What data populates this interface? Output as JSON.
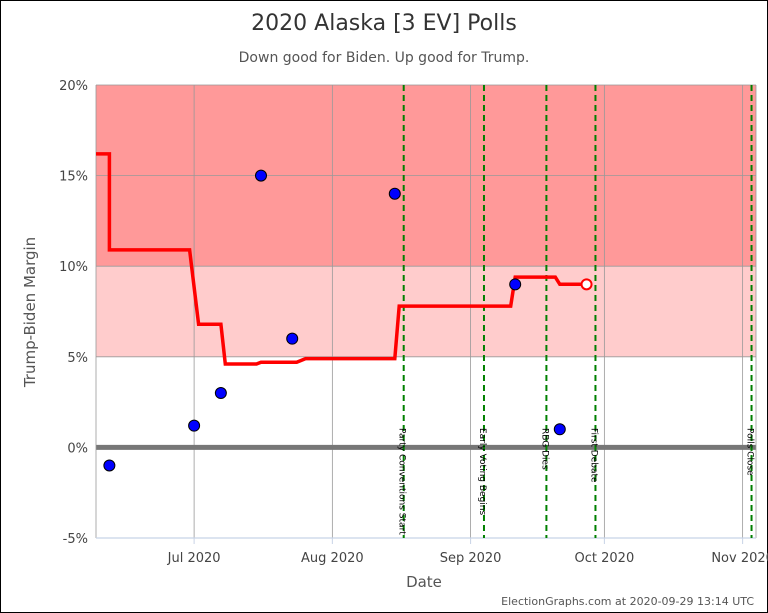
{
  "chart_data": {
    "type": "line",
    "title": "2020 Alaska [3 EV] Polls",
    "subtitle": "Down good for Biden. Up good for Trump.",
    "xlabel": "Date",
    "ylabel": "Trump-Biden Margin",
    "xlim": [
      "2020-06-09",
      "2020-11-04"
    ],
    "ylim": [
      -5,
      20
    ],
    "yticks": [
      -5,
      0,
      5,
      10,
      15,
      20
    ],
    "ytick_labels": [
      "-5%",
      "0%",
      "5%",
      "10%",
      "15%",
      "20%"
    ],
    "xticks": [
      {
        "date": "2020-07-01",
        "label": "Jul 2020"
      },
      {
        "date": "2020-08-01",
        "label": "Aug 2020"
      },
      {
        "date": "2020-09-01",
        "label": "Sep 2020"
      },
      {
        "date": "2020-10-01",
        "label": "Oct 2020"
      },
      {
        "date": "2020-11-01",
        "label": "Nov 2020"
      }
    ],
    "bands": [
      {
        "from": 10,
        "to": 20,
        "color": "#ff9999"
      },
      {
        "from": 5,
        "to": 10,
        "color": "#ffcccc"
      }
    ],
    "zero_line_color": "#777777",
    "grid": true,
    "series": [
      {
        "type": "step",
        "color": "#ff0000",
        "points": [
          {
            "x": "2020-06-09",
            "y": 16.2
          },
          {
            "x": "2020-06-12",
            "y": 16.2
          },
          {
            "x": "2020-06-12",
            "y": 10.9
          },
          {
            "x": "2020-06-30",
            "y": 10.9
          },
          {
            "x": "2020-07-02",
            "y": 6.8
          },
          {
            "x": "2020-07-07",
            "y": 6.8
          },
          {
            "x": "2020-07-08",
            "y": 4.6
          },
          {
            "x": "2020-07-15",
            "y": 4.6
          },
          {
            "x": "2020-07-16",
            "y": 4.7
          },
          {
            "x": "2020-07-24",
            "y": 4.7
          },
          {
            "x": "2020-07-26",
            "y": 4.9
          },
          {
            "x": "2020-08-15",
            "y": 4.9
          },
          {
            "x": "2020-08-16",
            "y": 7.8
          },
          {
            "x": "2020-09-10",
            "y": 7.8
          },
          {
            "x": "2020-09-11",
            "y": 9.4
          },
          {
            "x": "2020-09-20",
            "y": 9.4
          },
          {
            "x": "2020-09-21",
            "y": 9.0
          },
          {
            "x": "2020-09-27",
            "y": 9.0
          }
        ],
        "endpoint": {
          "x": "2020-09-27",
          "y": 9.0
        }
      },
      {
        "type": "scatter",
        "color": "#0000ff",
        "points": [
          {
            "x": "2020-06-12",
            "y": -1.0
          },
          {
            "x": "2020-07-01",
            "y": 1.2
          },
          {
            "x": "2020-07-07",
            "y": 3.0
          },
          {
            "x": "2020-07-16",
            "y": 15.0
          },
          {
            "x": "2020-07-23",
            "y": 6.0
          },
          {
            "x": "2020-08-15",
            "y": 14.0
          },
          {
            "x": "2020-09-11",
            "y": 9.0
          },
          {
            "x": "2020-09-21",
            "y": 1.0
          }
        ]
      }
    ],
    "events": [
      {
        "date": "2020-08-17",
        "label": "Party Conventions Start"
      },
      {
        "date": "2020-09-04",
        "label": "Early Voting Begins"
      },
      {
        "date": "2020-09-18",
        "label": "RBG Dies"
      },
      {
        "date": "2020-09-29",
        "label": "First Debate"
      },
      {
        "date": "2020-11-03",
        "label": "Polls Close"
      }
    ]
  },
  "credit": "ElectionGraphs.com at 2020-09-29 13:14 UTC"
}
